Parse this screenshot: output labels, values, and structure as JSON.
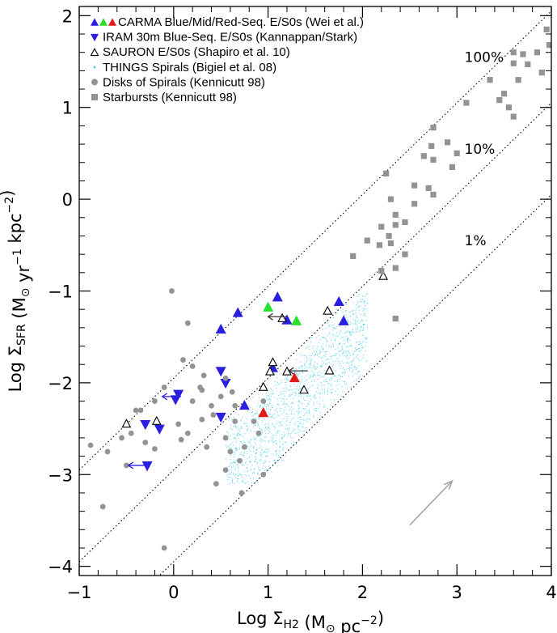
{
  "chart_data": {
    "type": "scatter",
    "title": "",
    "xlabel": {
      "prefix": "Log Σ",
      "sub": "H2",
      "unit": "(M",
      "sun": "⊙",
      "rest": "pc",
      "sup": "−2",
      "close": ")"
    },
    "ylabel": {
      "prefix": "Log Σ",
      "sub": "SFR",
      "unit": "(M",
      "sun": "⊙",
      "yr": "yr",
      "sup1": "−1",
      "kpc": "kpc",
      "sup2": "−2",
      "close": ")"
    },
    "xlim": [
      -1,
      4
    ],
    "ylim": [
      -4.1,
      2.1
    ],
    "xticks": [
      {
        "value": -1,
        "label": "−1"
      },
      {
        "value": 0,
        "label": "0"
      },
      {
        "value": 1,
        "label": "1"
      },
      {
        "value": 2,
        "label": "2"
      },
      {
        "value": 3,
        "label": "3"
      },
      {
        "value": 4,
        "label": "4"
      }
    ],
    "yticks": [
      {
        "value": -4,
        "label": "−4"
      },
      {
        "value": -3,
        "label": "−3"
      },
      {
        "value": -2,
        "label": "−2"
      },
      {
        "value": -1,
        "label": "−1"
      },
      {
        "value": 0,
        "label": "0"
      },
      {
        "value": 1,
        "label": "1"
      },
      {
        "value": 2,
        "label": "2"
      }
    ],
    "efficiency_lines": [
      {
        "label": "100%",
        "intercept": -1.95,
        "label_x": 3.2,
        "label_y": 1.55
      },
      {
        "label": "10%",
        "intercept": -2.95,
        "label_x": 3.2,
        "label_y": 0.55
      },
      {
        "label": "1%",
        "intercept": -3.95,
        "label_x": 3.2,
        "label_y": -0.45
      }
    ],
    "legend": [
      {
        "label": "CARMA Blue/Mid/Red-Seq. E/S0s (Wei et al.)",
        "marker": "triangle-up-triple"
      },
      {
        "label": "IRAM 30m Blue-Seq. E/S0s (Kannappan/Stark)",
        "marker": "triangle-down-blue"
      },
      {
        "label": "SAURON E/S0s (Shapiro et al. 10)",
        "marker": "triangle-open"
      },
      {
        "label": "THINGS Spirals (Bigiel et al. 08)",
        "marker": "dot-cyan"
      },
      {
        "label": "Disks of Spirals (Kennicutt 98)",
        "marker": "circle-gray"
      },
      {
        "label": "Starbursts (Kennicutt 98)",
        "marker": "square-gray"
      }
    ],
    "colors": {
      "blue": "#2a1fe0",
      "green": "#27e027",
      "red": "#e31a1a",
      "gray": "#939393",
      "cyan": "#35c6ec",
      "open": "#000000",
      "arrow_gray": "#a0a0a0"
    },
    "series": [
      {
        "name": "CARMA Blue-Seq. E/S0s",
        "marker": "triangle-up",
        "color": "blue",
        "points": [
          [
            0.5,
            -1.42
          ],
          [
            0.68,
            -1.24
          ],
          [
            1.1,
            -1.07
          ],
          [
            1.2,
            -1.32
          ],
          [
            1.75,
            -1.12
          ],
          [
            1.8,
            -1.33
          ],
          [
            1.05,
            -1.84
          ],
          [
            0.75,
            -2.25
          ]
        ]
      },
      {
        "name": "CARMA Mid-Seq. E/S0s",
        "marker": "triangle-up",
        "color": "green",
        "points": [
          [
            1.0,
            -1.18
          ],
          [
            1.3,
            -1.33
          ]
        ]
      },
      {
        "name": "CARMA Red-Seq. E/S0s",
        "marker": "triangle-up",
        "color": "red",
        "points": [
          [
            1.28,
            -1.95
          ],
          [
            0.95,
            -2.33
          ]
        ]
      },
      {
        "name": "IRAM 30m Blue-Seq. E/S0s",
        "marker": "triangle-down",
        "color": "blue",
        "points": [
          [
            0.5,
            -1.87
          ],
          [
            0.55,
            -2.0
          ],
          [
            -0.3,
            -2.45
          ],
          [
            -0.15,
            -2.5
          ],
          [
            0.02,
            -2.18
          ],
          [
            0.05,
            -2.12
          ],
          [
            0.5,
            -2.37
          ],
          [
            -0.28,
            -2.9
          ]
        ]
      },
      {
        "name": "SAURON E/S0s",
        "marker": "triangle-open",
        "color": "open",
        "points": [
          [
            2.22,
            -0.84
          ],
          [
            1.63,
            -1.22
          ],
          [
            1.15,
            -1.3
          ],
          [
            1.05,
            -1.78
          ],
          [
            1.02,
            -1.88
          ],
          [
            1.2,
            -1.88
          ],
          [
            0.95,
            -2.05
          ],
          [
            1.38,
            -2.08
          ],
          [
            1.65,
            -1.87
          ],
          [
            -0.18,
            -2.42
          ],
          [
            -0.5,
            -2.45
          ]
        ]
      },
      {
        "name": "Disks of Spirals",
        "marker": "circle",
        "color": "gray",
        "points": [
          [
            -0.02,
            -1.0
          ],
          [
            0.15,
            -1.35
          ],
          [
            0.1,
            -1.75
          ],
          [
            0.2,
            -1.82
          ],
          [
            0.32,
            -1.92
          ],
          [
            0.55,
            -1.95
          ],
          [
            0.62,
            -2.1
          ],
          [
            0.65,
            -2.25
          ],
          [
            0.5,
            -2.15
          ],
          [
            0.28,
            -2.05
          ],
          [
            -0.1,
            -2.05
          ],
          [
            -0.2,
            -2.2
          ],
          [
            -0.35,
            -2.3
          ],
          [
            -0.45,
            -2.55
          ],
          [
            -0.55,
            -2.6
          ],
          [
            -0.7,
            -2.75
          ],
          [
            -0.88,
            -2.68
          ],
          [
            -0.75,
            -3.35
          ],
          [
            -0.1,
            -3.8
          ],
          [
            0.05,
            -2.45
          ],
          [
            0.3,
            -2.4
          ],
          [
            0.42,
            -2.35
          ],
          [
            0.55,
            -2.6
          ],
          [
            0.6,
            -2.75
          ],
          [
            0.7,
            -2.85
          ],
          [
            0.75,
            -2.7
          ],
          [
            0.9,
            -2.55
          ],
          [
            0.45,
            -3.1
          ],
          [
            0.55,
            -2.95
          ],
          [
            0.72,
            -3.2
          ],
          [
            0.95,
            -3.0
          ],
          [
            -0.3,
            -2.65
          ],
          [
            -0.2,
            -2.72
          ],
          [
            0.08,
            -2.62
          ],
          [
            0.15,
            -2.55
          ],
          [
            0.35,
            -2.7
          ],
          [
            0.65,
            -2.42
          ],
          [
            0.85,
            -2.42
          ],
          [
            0.95,
            -2.2
          ],
          [
            -0.5,
            -2.9
          ],
          [
            -0.4,
            -2.3
          ],
          [
            0.2,
            -2.2
          ],
          [
            0.3,
            -2.08
          ],
          [
            0.4,
            -2.25
          ]
        ]
      },
      {
        "name": "Starbursts",
        "marker": "square",
        "color": "gray",
        "points": [
          [
            3.95,
            1.85
          ],
          [
            3.98,
            1.68
          ],
          [
            3.85,
            1.6
          ],
          [
            3.7,
            1.58
          ],
          [
            3.6,
            1.6
          ],
          [
            3.6,
            1.48
          ],
          [
            3.75,
            1.47
          ],
          [
            3.9,
            1.38
          ],
          [
            3.65,
            1.3
          ],
          [
            3.35,
            1.3
          ],
          [
            3.5,
            1.15
          ],
          [
            3.45,
            1.08
          ],
          [
            3.55,
            1.0
          ],
          [
            3.1,
            1.05
          ],
          [
            3.6,
            0.9
          ],
          [
            2.75,
            0.78
          ],
          [
            2.73,
            0.58
          ],
          [
            2.9,
            0.62
          ],
          [
            3.0,
            0.5
          ],
          [
            2.65,
            0.47
          ],
          [
            2.95,
            0.35
          ],
          [
            2.75,
            0.43
          ],
          [
            2.25,
            0.28
          ],
          [
            2.55,
            0.15
          ],
          [
            2.7,
            0.12
          ],
          [
            2.75,
            0.05
          ],
          [
            2.55,
            -0.05
          ],
          [
            2.3,
            0.0
          ],
          [
            2.35,
            -0.17
          ],
          [
            2.35,
            -0.28
          ],
          [
            2.28,
            -0.4
          ],
          [
            2.2,
            -0.3
          ],
          [
            2.45,
            -0.25
          ],
          [
            2.05,
            -0.45
          ],
          [
            2.18,
            -0.5
          ],
          [
            2.3,
            -0.48
          ],
          [
            2.45,
            -0.6
          ],
          [
            1.9,
            -0.62
          ],
          [
            2.35,
            -0.75
          ],
          [
            2.2,
            -0.78
          ],
          [
            2.35,
            -1.3
          ]
        ]
      }
    ],
    "arrows": [
      {
        "x_start": 1.2,
        "y": -1.28,
        "x_end": 1.0
      },
      {
        "x_start": 1.42,
        "y": -1.87,
        "x_end": 1.22
      },
      {
        "x_start": 0.08,
        "y": -2.15,
        "x_end": -0.12
      },
      {
        "x_start": -0.28,
        "y": -2.9,
        "x_end": -0.48
      }
    ],
    "vector": {
      "x_start": 2.5,
      "y_start": -3.55,
      "x_end": 2.95,
      "y_end": -3.07
    },
    "things_cloud": {
      "x_range": [
        0.55,
        2.05
      ],
      "y_range": [
        -3.1,
        -1.0
      ]
    }
  }
}
